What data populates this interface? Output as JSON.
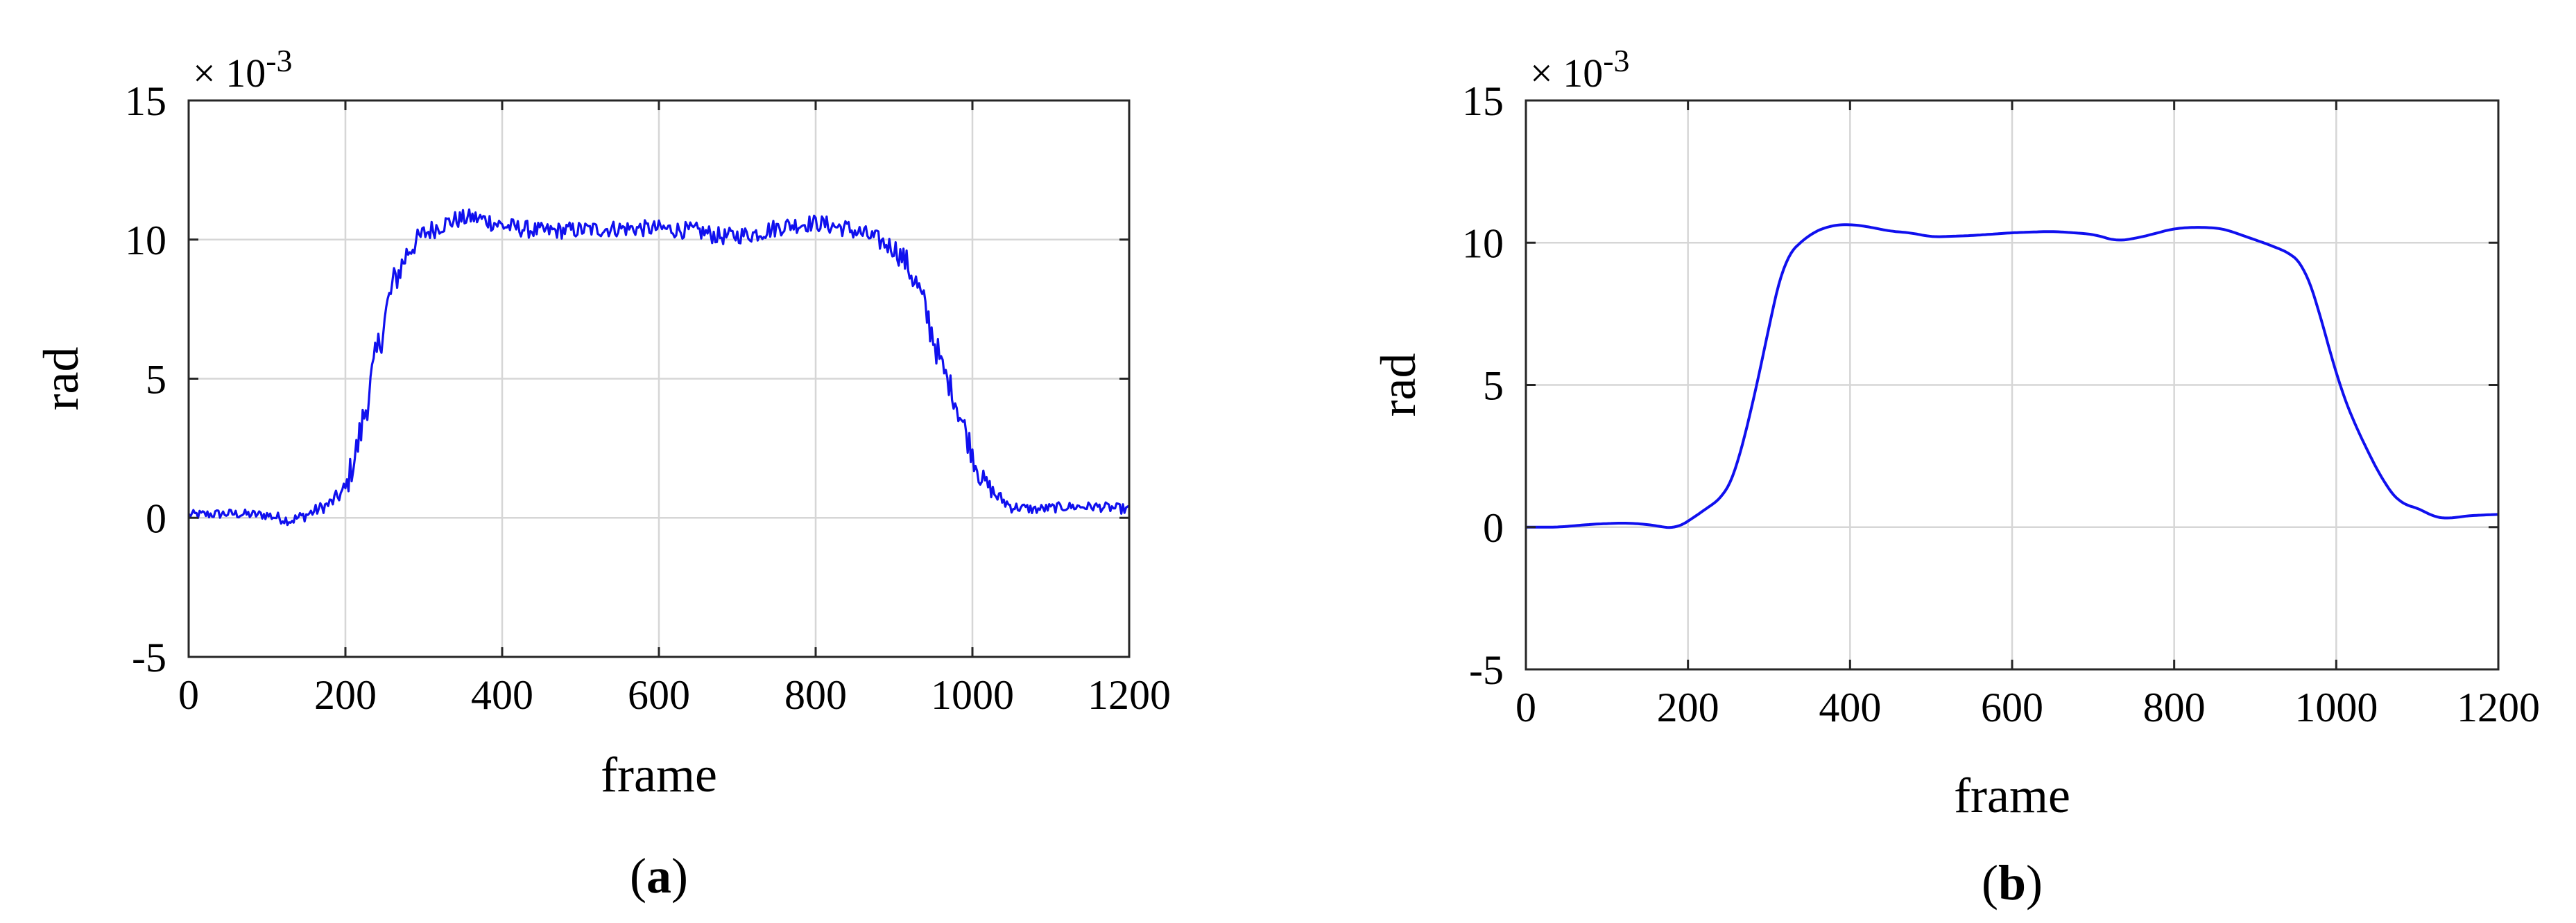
{
  "chart_data": [
    {
      "type": "line",
      "panel_label": "(a)",
      "panel_letter": "a",
      "xlabel": "frame",
      "ylabel": "rad",
      "exponent_label": "× 10",
      "exponent_power": "-3",
      "xlim": [
        0,
        1200
      ],
      "ylim": [
        -5,
        15
      ],
      "xticks": [
        0,
        200,
        400,
        600,
        800,
        1000,
        1200
      ],
      "yticks": [
        -5,
        0,
        5,
        10,
        15
      ],
      "grid": true,
      "line_color": "#1010ee",
      "style": "noisy",
      "series": [
        {
          "x": [
            0,
            50,
            100,
            130,
            150,
            180,
            200,
            215,
            230,
            245,
            260,
            280,
            300,
            320,
            340,
            360,
            380,
            400,
            450,
            500,
            550,
            600,
            650,
            680,
            720,
            760,
            800,
            840,
            870,
            900,
            915,
            930,
            945,
            960,
            975,
            990,
            1010,
            1030,
            1050,
            1080,
            1120,
            1160,
            1200
          ],
          "values": [
            0.1,
            0.15,
            0.1,
            -0.1,
            0.1,
            0.5,
            1.0,
            2.5,
            4.5,
            6.5,
            8.3,
            9.6,
            10.2,
            10.5,
            10.7,
            10.8,
            10.7,
            10.5,
            10.3,
            10.35,
            10.4,
            10.4,
            10.3,
            10.1,
            10.2,
            10.5,
            10.6,
            10.4,
            10.1,
            9.7,
            9.2,
            8.3,
            7.0,
            5.5,
            4.5,
            3.2,
            1.5,
            0.8,
            0.4,
            0.3,
            0.4,
            0.4,
            0.3
          ]
        }
      ]
    },
    {
      "type": "line",
      "panel_label": "(b)",
      "panel_letter": "b",
      "xlabel": "frame",
      "ylabel": "rad",
      "exponent_label": "× 10",
      "exponent_power": "-3",
      "xlim": [
        0,
        1200
      ],
      "ylim": [
        -5,
        15
      ],
      "xticks": [
        0,
        200,
        400,
        600,
        800,
        1000,
        1200
      ],
      "yticks": [
        -5,
        0,
        5,
        10,
        15
      ],
      "grid": true,
      "line_color": "#1010ee",
      "style": "smooth",
      "series": [
        {
          "x": [
            0,
            40,
            80,
            120,
            150,
            170,
            185,
            200,
            215,
            230,
            245,
            260,
            275,
            290,
            305,
            320,
            335,
            350,
            375,
            400,
            425,
            450,
            475,
            500,
            550,
            600,
            650,
            700,
            730,
            760,
            800,
            830,
            860,
            890,
            920,
            945,
            960,
            975,
            990,
            1005,
            1020,
            1040,
            1060,
            1080,
            1100,
            1120,
            1140,
            1160,
            1200
          ],
          "values": [
            0.0,
            0.0,
            0.1,
            0.15,
            0.1,
            0.0,
            -0.05,
            0.2,
            0.5,
            0.8,
            1.1,
            2.0,
            3.8,
            5.6,
            7.8,
            9.5,
            9.9,
            10.3,
            10.6,
            10.65,
            10.55,
            10.4,
            10.35,
            10.2,
            10.25,
            10.35,
            10.4,
            10.3,
            10.05,
            10.2,
            10.5,
            10.55,
            10.5,
            10.2,
            9.9,
            9.6,
            9.2,
            8.0,
            6.4,
            4.9,
            3.8,
            2.6,
            1.5,
            0.8,
            0.7,
            0.35,
            0.3,
            0.4,
            0.45
          ]
        }
      ]
    }
  ]
}
